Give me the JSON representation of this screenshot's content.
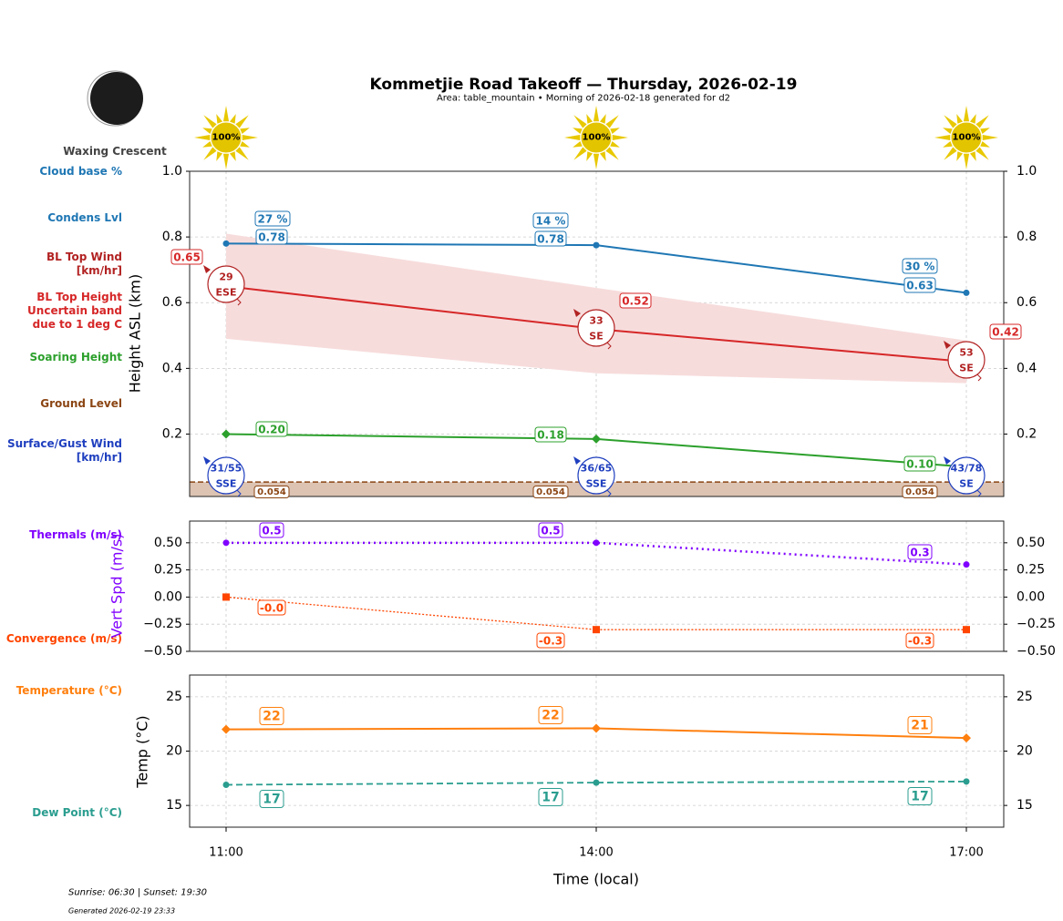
{
  "header": {
    "title": "Kommetjie Road Takeoff — Thursday, 2026-02-19",
    "subtitle": "Area: table_mountain • Morning of 2026-02-18 generated for d2",
    "moon_phase": "Waxing Crescent",
    "sun_icons": [
      "100%",
      "100%",
      "100%"
    ]
  },
  "legend_labels": {
    "cloud_base": "Cloud base %",
    "condens": "Condens Lvl",
    "bl_wind": [
      "BL Top Wind",
      "[km/hr]"
    ],
    "bl_height": [
      "BL Top Height",
      "Uncertain band",
      "due to 1 deg C"
    ],
    "soaring": "Soaring Height",
    "ground": "Ground Level",
    "surface_wind": [
      "Surface/Gust Wind",
      "[km/hr]"
    ],
    "thermals": "Thermals (m/s)",
    "convergence": "Convergence (m/s)",
    "temperature": "Temperature (°C)",
    "dewpoint": "Dew Point (°C)"
  },
  "footer": {
    "sun": "Sunrise: 06:30 | Sunset: 19:30",
    "generated": "Generated 2026-02-19 23:33"
  },
  "colors": {
    "cloud": "#1f77b4",
    "bl": "#d62728",
    "band": "#f7dcdc",
    "soaring": "#2ca02c",
    "ground": "#8b4513",
    "ground_fill": "#dcc3b2",
    "surface_wind": "#1f3fbf",
    "thermals": "#8000ff",
    "convergence": "#ff4500",
    "temperature": "#ff7f0e",
    "dewpoint": "#2a9d8f"
  },
  "chart_data": [
    {
      "type": "line",
      "x": [
        "11:00",
        "14:00",
        "17:00"
      ],
      "xlabel": "Time (local)",
      "ylabel": "Height ASL (km)",
      "ylim": [
        0.01,
        1.0
      ],
      "yticks": [
        "0.2",
        "0.4",
        "0.6",
        "0.8",
        "1.0"
      ],
      "ytick_values": [
        0.2,
        0.4,
        0.6,
        0.8,
        1.0
      ],
      "grid": true,
      "cloud_base_pct": [
        "27 %",
        "14 %",
        "30 %"
      ],
      "condens_lvl": {
        "values": [
          0.78,
          0.775,
          0.63
        ],
        "labels": [
          "0.78",
          "0.78",
          "0.63"
        ]
      },
      "bl_top": {
        "values": [
          0.65,
          0.52,
          0.42
        ],
        "labels": [
          "0.65",
          "0.52",
          "0.42"
        ]
      },
      "bl_band": {
        "lower": [
          0.49,
          0.385,
          0.355
        ],
        "upper": [
          0.81,
          0.645,
          0.485
        ]
      },
      "soaring": {
        "values": [
          0.2,
          0.185,
          0.1
        ],
        "labels": [
          "0.20",
          "0.18",
          "0.10"
        ]
      },
      "ground": {
        "value": 0.054,
        "labels": [
          "0.054",
          "0.054",
          "0.054"
        ]
      },
      "bl_wind": [
        {
          "speed": "29",
          "dir": "ESE"
        },
        {
          "speed": "33",
          "dir": "SE"
        },
        {
          "speed": "53",
          "dir": "SE"
        }
      ],
      "surface_wind": [
        {
          "speed": "31/55",
          "dir": "SSE"
        },
        {
          "speed": "36/65",
          "dir": "SSE"
        },
        {
          "speed": "43/78",
          "dir": "SE"
        }
      ]
    },
    {
      "type": "line",
      "x": [
        "11:00",
        "14:00",
        "17:00"
      ],
      "ylabel": "Vert Spd (m/s)",
      "ylim": [
        -0.5,
        0.7
      ],
      "yticks": [
        "0.50",
        "0.25",
        "0.00",
        "−0.25",
        "−0.50"
      ],
      "ytick_values": [
        0.5,
        0.25,
        0,
        -0.25,
        -0.5
      ],
      "grid": true,
      "thermals": {
        "values": [
          0.5,
          0.5,
          0.3
        ],
        "labels": [
          "0.5",
          "0.5",
          "0.3"
        ]
      },
      "convergence": {
        "values": [
          0.0,
          -0.3,
          -0.3
        ],
        "labels": [
          "-0.0",
          "-0.3",
          "-0.3"
        ]
      }
    },
    {
      "type": "line",
      "x": [
        "11:00",
        "14:00",
        "17:00"
      ],
      "ylabel": "Temp (°C)",
      "ylim": [
        13,
        27
      ],
      "yticks": [
        "25",
        "20",
        "15"
      ],
      "ytick_values": [
        25,
        20,
        15
      ],
      "grid": true,
      "temperature": {
        "values": [
          22.0,
          22.1,
          21.2
        ],
        "labels": [
          "22",
          "22",
          "21"
        ]
      },
      "dewpoint": {
        "values": [
          16.9,
          17.1,
          17.2
        ],
        "labels": [
          "17",
          "17",
          "17"
        ]
      }
    }
  ]
}
